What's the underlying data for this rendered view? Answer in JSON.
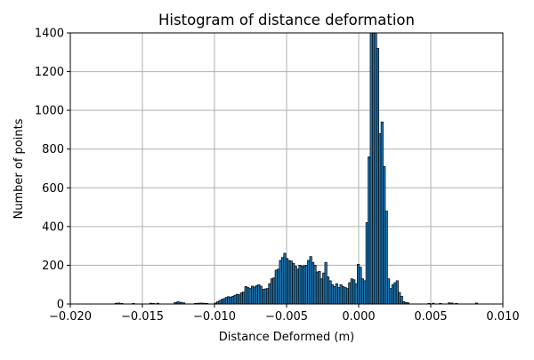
{
  "chart_data": {
    "type": "bar",
    "title": "Histogram of distance deformation",
    "xlabel": "Distance Deformed (m)",
    "ylabel": "Number of points",
    "xlim": [
      -0.02,
      0.01
    ],
    "ylim": [
      0,
      1400
    ],
    "x_ticks": [
      "−0.020",
      "−0.015",
      "−0.010",
      "−0.005",
      "0.000",
      "0.005",
      "0.010"
    ],
    "y_ticks": [
      "0",
      "200",
      "400",
      "600",
      "800",
      "1000",
      "1200",
      "1400"
    ],
    "x_tick_values": [
      -0.02,
      -0.015,
      -0.01,
      -0.005,
      0.0,
      0.005,
      0.01
    ],
    "y_tick_values": [
      0,
      200,
      400,
      600,
      800,
      1000,
      1200,
      1400
    ],
    "grid": true,
    "bin_width": 0.00015,
    "bins": [
      {
        "x": -0.0169,
        "y": 4
      },
      {
        "x": -0.0167,
        "y": 5
      },
      {
        "x": -0.0165,
        "y": 3
      },
      {
        "x": -0.0157,
        "y": 3
      },
      {
        "x": -0.0145,
        "y": 4
      },
      {
        "x": -0.0143,
        "y": 3
      },
      {
        "x": -0.014,
        "y": 4
      },
      {
        "x": -0.0128,
        "y": 8
      },
      {
        "x": -0.0126,
        "y": 12
      },
      {
        "x": -0.0124,
        "y": 9
      },
      {
        "x": -0.0122,
        "y": 6
      },
      {
        "x": -0.0114,
        "y": 3
      },
      {
        "x": -0.0112,
        "y": 4
      },
      {
        "x": -0.011,
        "y": 5
      },
      {
        "x": -0.0108,
        "y": 4
      },
      {
        "x": -0.0106,
        "y": 3
      },
      {
        "x": -0.01,
        "y": 5
      },
      {
        "x": -0.00985,
        "y": 12
      },
      {
        "x": -0.0097,
        "y": 18
      },
      {
        "x": -0.00955,
        "y": 24
      },
      {
        "x": -0.0094,
        "y": 28
      },
      {
        "x": -0.00925,
        "y": 34
      },
      {
        "x": -0.0091,
        "y": 38
      },
      {
        "x": -0.00895,
        "y": 35
      },
      {
        "x": -0.0088,
        "y": 40
      },
      {
        "x": -0.00865,
        "y": 45
      },
      {
        "x": -0.0085,
        "y": 50
      },
      {
        "x": -0.00835,
        "y": 48
      },
      {
        "x": -0.0082,
        "y": 58
      },
      {
        "x": -0.00805,
        "y": 62
      },
      {
        "x": -0.0079,
        "y": 90
      },
      {
        "x": -0.00775,
        "y": 85
      },
      {
        "x": -0.0076,
        "y": 80
      },
      {
        "x": -0.00745,
        "y": 92
      },
      {
        "x": -0.0073,
        "y": 88
      },
      {
        "x": -0.00715,
        "y": 95
      },
      {
        "x": -0.007,
        "y": 100
      },
      {
        "x": -0.00685,
        "y": 92
      },
      {
        "x": -0.0067,
        "y": 75
      },
      {
        "x": -0.00655,
        "y": 78
      },
      {
        "x": -0.0064,
        "y": 80
      },
      {
        "x": -0.00625,
        "y": 105
      },
      {
        "x": -0.0061,
        "y": 130
      },
      {
        "x": -0.00595,
        "y": 135
      },
      {
        "x": -0.0058,
        "y": 175
      },
      {
        "x": -0.00565,
        "y": 180
      },
      {
        "x": -0.0055,
        "y": 225
      },
      {
        "x": -0.00535,
        "y": 240
      },
      {
        "x": -0.0052,
        "y": 262
      },
      {
        "x": -0.00505,
        "y": 235
      },
      {
        "x": -0.0049,
        "y": 225
      },
      {
        "x": -0.00475,
        "y": 222
      },
      {
        "x": -0.0046,
        "y": 210
      },
      {
        "x": -0.00445,
        "y": 195
      },
      {
        "x": -0.0043,
        "y": 180
      },
      {
        "x": -0.00415,
        "y": 200
      },
      {
        "x": -0.004,
        "y": 195
      },
      {
        "x": -0.00385,
        "y": 198
      },
      {
        "x": -0.0037,
        "y": 200
      },
      {
        "x": -0.00355,
        "y": 225
      },
      {
        "x": -0.0034,
        "y": 245
      },
      {
        "x": -0.00325,
        "y": 215
      },
      {
        "x": -0.0031,
        "y": 200
      },
      {
        "x": -0.00295,
        "y": 165
      },
      {
        "x": -0.0028,
        "y": 168
      },
      {
        "x": -0.00265,
        "y": 130
      },
      {
        "x": -0.0025,
        "y": 160
      },
      {
        "x": -0.00235,
        "y": 215
      },
      {
        "x": -0.0022,
        "y": 140
      },
      {
        "x": -0.00205,
        "y": 120
      },
      {
        "x": -0.0019,
        "y": 100
      },
      {
        "x": -0.00175,
        "y": 90
      },
      {
        "x": -0.0016,
        "y": 105
      },
      {
        "x": -0.00145,
        "y": 85
      },
      {
        "x": -0.0013,
        "y": 100
      },
      {
        "x": -0.00115,
        "y": 90
      },
      {
        "x": -0.001,
        "y": 85
      },
      {
        "x": -0.00085,
        "y": 80
      },
      {
        "x": -0.0007,
        "y": 110
      },
      {
        "x": -0.00055,
        "y": 130
      },
      {
        "x": -0.0004,
        "y": 125
      },
      {
        "x": -0.00025,
        "y": 105
      },
      {
        "x": -0.0001,
        "y": 205
      },
      {
        "x": 5e-05,
        "y": 190
      },
      {
        "x": 0.0002,
        "y": 130
      },
      {
        "x": 0.00035,
        "y": 120
      },
      {
        "x": 0.0005,
        "y": 420
      },
      {
        "x": 0.00065,
        "y": 760
      },
      {
        "x": 0.0008,
        "y": 1440
      },
      {
        "x": 0.00095,
        "y": 1460
      },
      {
        "x": 0.0011,
        "y": 1400
      },
      {
        "x": 0.00125,
        "y": 1320
      },
      {
        "x": 0.0014,
        "y": 880
      },
      {
        "x": 0.00155,
        "y": 940
      },
      {
        "x": 0.0017,
        "y": 710
      },
      {
        "x": 0.00185,
        "y": 480
      },
      {
        "x": 0.002,
        "y": 130
      },
      {
        "x": 0.00215,
        "y": 80
      },
      {
        "x": 0.0023,
        "y": 100
      },
      {
        "x": 0.00245,
        "y": 110
      },
      {
        "x": 0.0026,
        "y": 120
      },
      {
        "x": 0.00275,
        "y": 60
      },
      {
        "x": 0.0029,
        "y": 40
      },
      {
        "x": 0.00305,
        "y": 12
      },
      {
        "x": 0.0032,
        "y": 8
      },
      {
        "x": 0.00335,
        "y": 6
      },
      {
        "x": 0.0048,
        "y": 3
      },
      {
        "x": 0.0051,
        "y": 4
      },
      {
        "x": 0.0056,
        "y": 3
      },
      {
        "x": 0.0062,
        "y": 6
      },
      {
        "x": 0.0064,
        "y": 5
      },
      {
        "x": 0.0067,
        "y": 3
      },
      {
        "x": 0.0081,
        "y": 5
      }
    ]
  },
  "colors": {
    "bar_fill": "#1f77b4",
    "bar_edge": "#000000",
    "grid": "#b0b0b0"
  }
}
